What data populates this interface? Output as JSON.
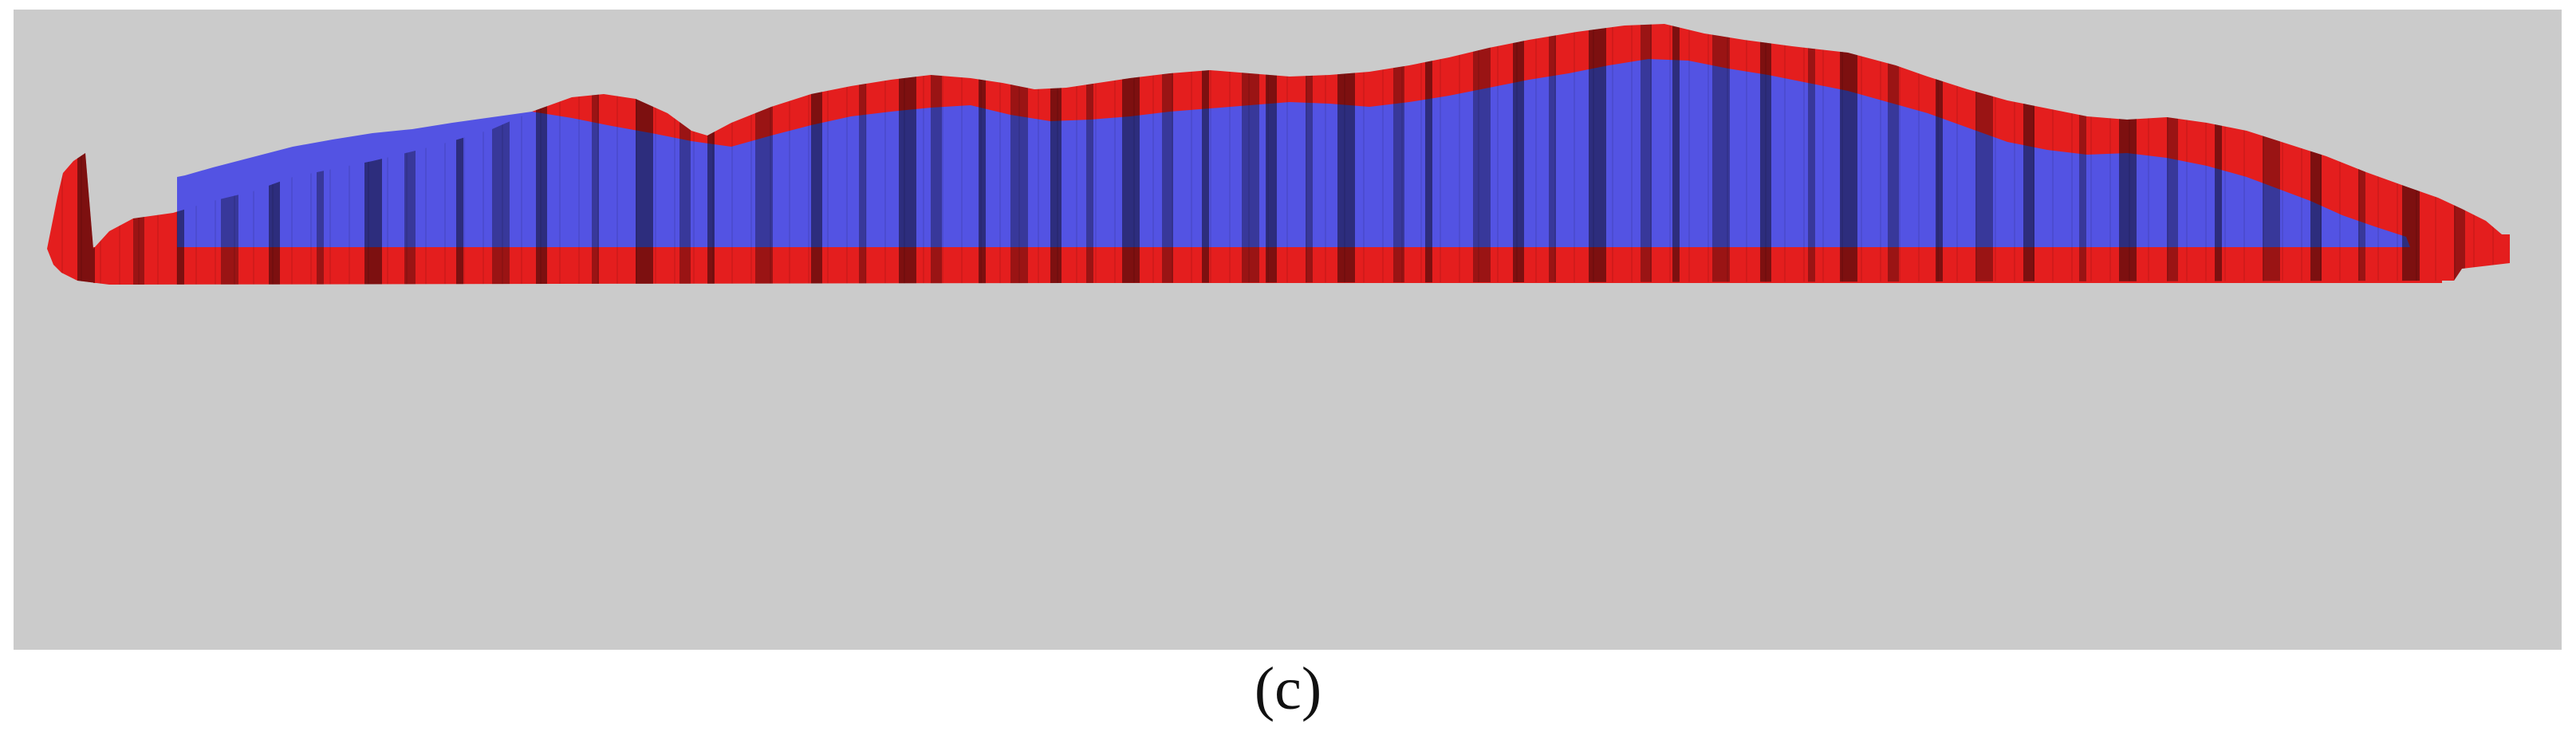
{
  "caption": "(c)",
  "colors": {
    "background": "#ffffff",
    "panel": "#cbcbcb",
    "outer_shell": "#e41e1e",
    "inner_fill": "#5353e3",
    "shadow_stripe": "#000000"
  }
}
